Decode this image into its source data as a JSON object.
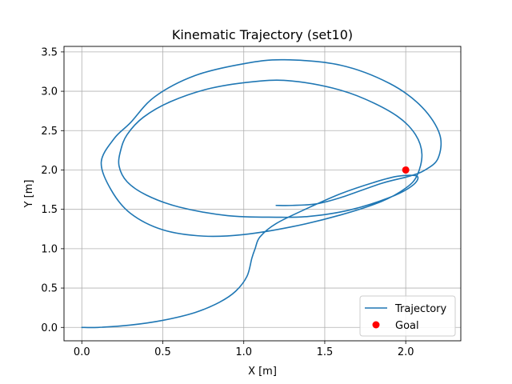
{
  "chart_data": {
    "type": "line",
    "title": "Kinematic Trajectory (set10)",
    "xlabel": "X [m]",
    "ylabel": "Y [m]",
    "xlim": [
      -0.11,
      2.34
    ],
    "ylim": [
      -0.17,
      3.57
    ],
    "x_ticks": [
      "0.0",
      "0.5",
      "1.0",
      "1.5",
      "2.0"
    ],
    "y_ticks": [
      "0.0",
      "0.5",
      "1.0",
      "1.5",
      "2.0",
      "2.5",
      "3.0",
      "3.5"
    ],
    "grid": true,
    "legend_position": "lower-right",
    "series": [
      {
        "name": "Trajectory",
        "color": "#1f77b4",
        "style": "line",
        "points": [
          [
            0.0,
            0.0
          ],
          [
            0.1,
            0.0
          ],
          [
            0.3,
            0.03
          ],
          [
            0.5,
            0.09
          ],
          [
            0.7,
            0.19
          ],
          [
            0.85,
            0.32
          ],
          [
            0.95,
            0.46
          ],
          [
            1.02,
            0.65
          ],
          [
            1.05,
            0.88
          ],
          [
            1.07,
            1.0
          ],
          [
            1.1,
            1.15
          ],
          [
            1.2,
            1.32
          ],
          [
            1.4,
            1.52
          ],
          [
            1.6,
            1.7
          ],
          [
            1.8,
            1.84
          ],
          [
            1.95,
            1.92
          ],
          [
            2.07,
            1.92
          ],
          [
            2.04,
            1.8
          ],
          [
            1.9,
            1.65
          ],
          [
            1.65,
            1.49
          ],
          [
            1.4,
            1.41
          ],
          [
            1.2,
            1.4
          ],
          [
            0.9,
            1.42
          ],
          [
            0.6,
            1.53
          ],
          [
            0.4,
            1.68
          ],
          [
            0.28,
            1.85
          ],
          [
            0.23,
            2.05
          ],
          [
            0.24,
            2.25
          ],
          [
            0.28,
            2.45
          ],
          [
            0.38,
            2.67
          ],
          [
            0.55,
            2.87
          ],
          [
            0.8,
            3.04
          ],
          [
            1.1,
            3.13
          ],
          [
            1.3,
            3.13
          ],
          [
            1.55,
            3.04
          ],
          [
            1.75,
            2.9
          ],
          [
            1.95,
            2.68
          ],
          [
            2.06,
            2.45
          ],
          [
            2.1,
            2.2
          ],
          [
            2.07,
            1.93
          ],
          [
            2.0,
            1.77
          ],
          [
            1.85,
            1.6
          ],
          [
            1.6,
            1.43
          ],
          [
            1.3,
            1.28
          ],
          [
            1.0,
            1.18
          ],
          [
            0.75,
            1.16
          ],
          [
            0.5,
            1.24
          ],
          [
            0.3,
            1.45
          ],
          [
            0.18,
            1.75
          ],
          [
            0.12,
            2.1
          ],
          [
            0.2,
            2.4
          ],
          [
            0.3,
            2.6
          ],
          [
            0.45,
            2.93
          ],
          [
            0.7,
            3.2
          ],
          [
            1.0,
            3.35
          ],
          [
            1.25,
            3.4
          ],
          [
            1.6,
            3.33
          ],
          [
            1.9,
            3.1
          ],
          [
            2.1,
            2.8
          ],
          [
            2.21,
            2.45
          ],
          [
            2.2,
            2.15
          ],
          [
            2.12,
            2.0
          ],
          [
            2.02,
            1.92
          ],
          [
            1.85,
            1.83
          ],
          [
            1.6,
            1.65
          ],
          [
            1.45,
            1.57
          ],
          [
            1.3,
            1.55
          ],
          [
            1.2,
            1.55
          ]
        ]
      },
      {
        "name": "Goal",
        "color": "#ff0000",
        "style": "marker",
        "points": [
          [
            2.0,
            2.0
          ]
        ]
      }
    ]
  }
}
